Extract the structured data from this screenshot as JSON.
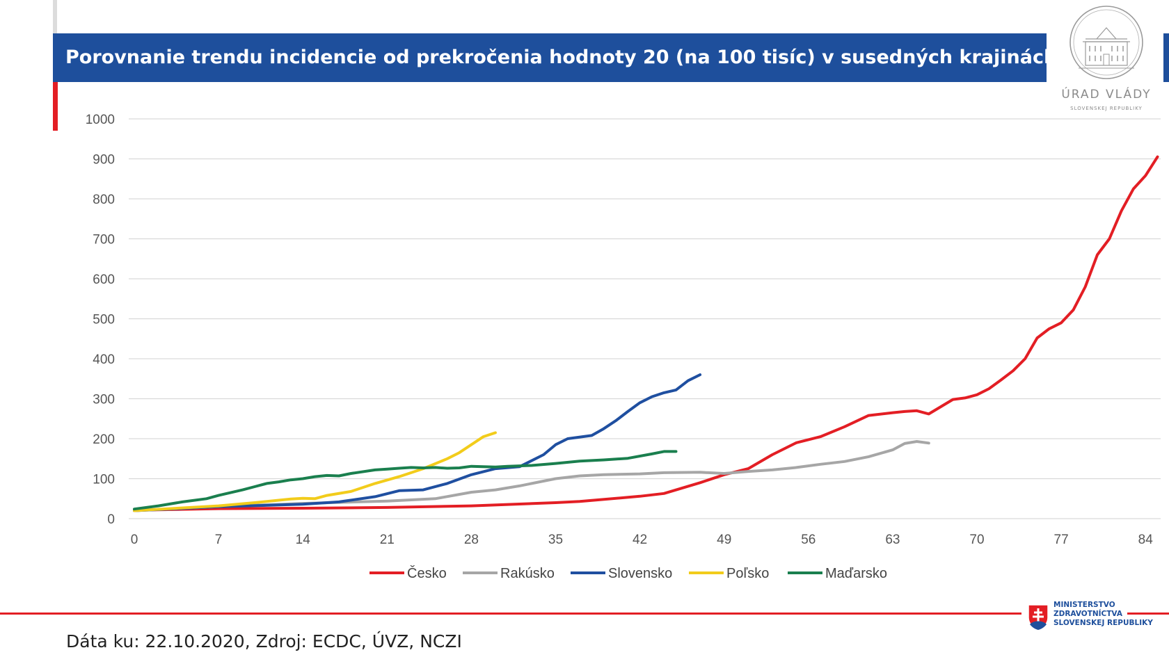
{
  "header": {
    "title": "Porovnanie trendu incidencie od prekročenia hodnoty 20 (na 100 tisíc) v susedných krajinách"
  },
  "logo": {
    "icon": "government-building-seal-icon",
    "caption": "ÚRAD VLÁDY",
    "subcaption": "SLOVENSKEJ REPUBLIKY"
  },
  "chart_data": {
    "type": "line",
    "title": "",
    "xlabel": "",
    "ylabel": "",
    "xlim": [
      0,
      85
    ],
    "ylim": [
      0,
      1000
    ],
    "x_ticks": [
      0,
      7,
      14,
      21,
      28,
      35,
      42,
      49,
      56,
      63,
      70,
      77,
      84
    ],
    "y_ticks": [
      0,
      100,
      200,
      300,
      400,
      500,
      600,
      700,
      800,
      900,
      1000
    ],
    "grid": "horizontal",
    "legend_position": "bottom",
    "series": [
      {
        "name": "Česko",
        "color": "#e31e24",
        "x": [
          0,
          7,
          14,
          21,
          28,
          35,
          37,
          42,
          44,
          47,
          49,
          51,
          53,
          55,
          57,
          59,
          61,
          63,
          64,
          65,
          66,
          67,
          68,
          69,
          70,
          71,
          72,
          73,
          74,
          75,
          76,
          77,
          78,
          79,
          80,
          81,
          82,
          83,
          84,
          85
        ],
        "y": [
          21,
          25,
          26,
          28,
          32,
          40,
          43,
          56,
          63,
          90,
          110,
          125,
          160,
          190,
          205,
          230,
          258,
          265,
          268,
          270,
          262,
          280,
          298,
          302,
          310,
          325,
          347,
          370,
          400,
          452,
          475,
          490,
          522,
          580,
          660,
          700,
          770,
          825,
          858,
          905
        ]
      },
      {
        "name": "Rakúsko",
        "color": "#a6a6a6",
        "x": [
          0,
          7,
          14,
          21,
          25,
          28,
          30,
          32,
          35,
          37,
          39,
          42,
          44,
          47,
          49,
          51,
          53,
          55,
          57,
          59,
          61,
          63,
          64,
          65,
          66
        ],
        "y": [
          20,
          30,
          38,
          44,
          50,
          66,
          72,
          82,
          100,
          107,
          110,
          112,
          115,
          116,
          113,
          118,
          122,
          128,
          136,
          143,
          155,
          172,
          188,
          193,
          189
        ]
      },
      {
        "name": "Slovensko",
        "color": "#1f4fa0",
        "x": [
          0,
          7,
          14,
          17,
          20,
          22,
          24,
          26,
          28,
          30,
          32,
          34,
          35,
          36,
          38,
          39,
          40,
          41,
          42,
          43,
          44,
          45,
          46,
          47
        ],
        "y": [
          20,
          30,
          36,
          42,
          55,
          70,
          72,
          88,
          110,
          125,
          130,
          160,
          185,
          200,
          208,
          225,
          245,
          268,
          290,
          305,
          315,
          322,
          345,
          360
        ]
      },
      {
        "name": "Poľsko",
        "color": "#f2cc1b",
        "x": [
          0,
          7,
          10,
          13,
          14,
          15,
          16,
          18,
          20,
          22,
          24,
          26,
          27,
          28,
          29,
          30
        ],
        "y": [
          20,
          32,
          40,
          49,
          51,
          50,
          58,
          68,
          88,
          105,
          125,
          150,
          165,
          185,
          205,
          215
        ]
      },
      {
        "name": "Maďarsko",
        "color": "#1a7f4e",
        "x": [
          0,
          2,
          4,
          6,
          7,
          8,
          9,
          10,
          11,
          12,
          13,
          14,
          15,
          16,
          17,
          18,
          20,
          21,
          22,
          23,
          24,
          25,
          26,
          27,
          28,
          29,
          30,
          31,
          33,
          35,
          37,
          39,
          41,
          43,
          44,
          45
        ],
        "y": [
          24,
          32,
          42,
          50,
          58,
          65,
          72,
          80,
          88,
          92,
          97,
          100,
          105,
          108,
          107,
          113,
          122,
          124,
          126,
          128,
          127,
          128,
          126,
          127,
          131,
          130,
          129,
          131,
          133,
          138,
          144,
          147,
          151,
          162,
          168,
          168
        ]
      }
    ]
  },
  "footer": {
    "source": "Dáta ku: 22.10.2020, Zdroj: ECDC, ÚVZ, NCZI"
  },
  "ministry": {
    "icon": "slovak-coat-of-arms-icon",
    "line1": "MINISTERSTVO",
    "line2": "ZDRAVOTNÍCTVA",
    "line3": "SLOVENSKEJ REPUBLIKY"
  }
}
